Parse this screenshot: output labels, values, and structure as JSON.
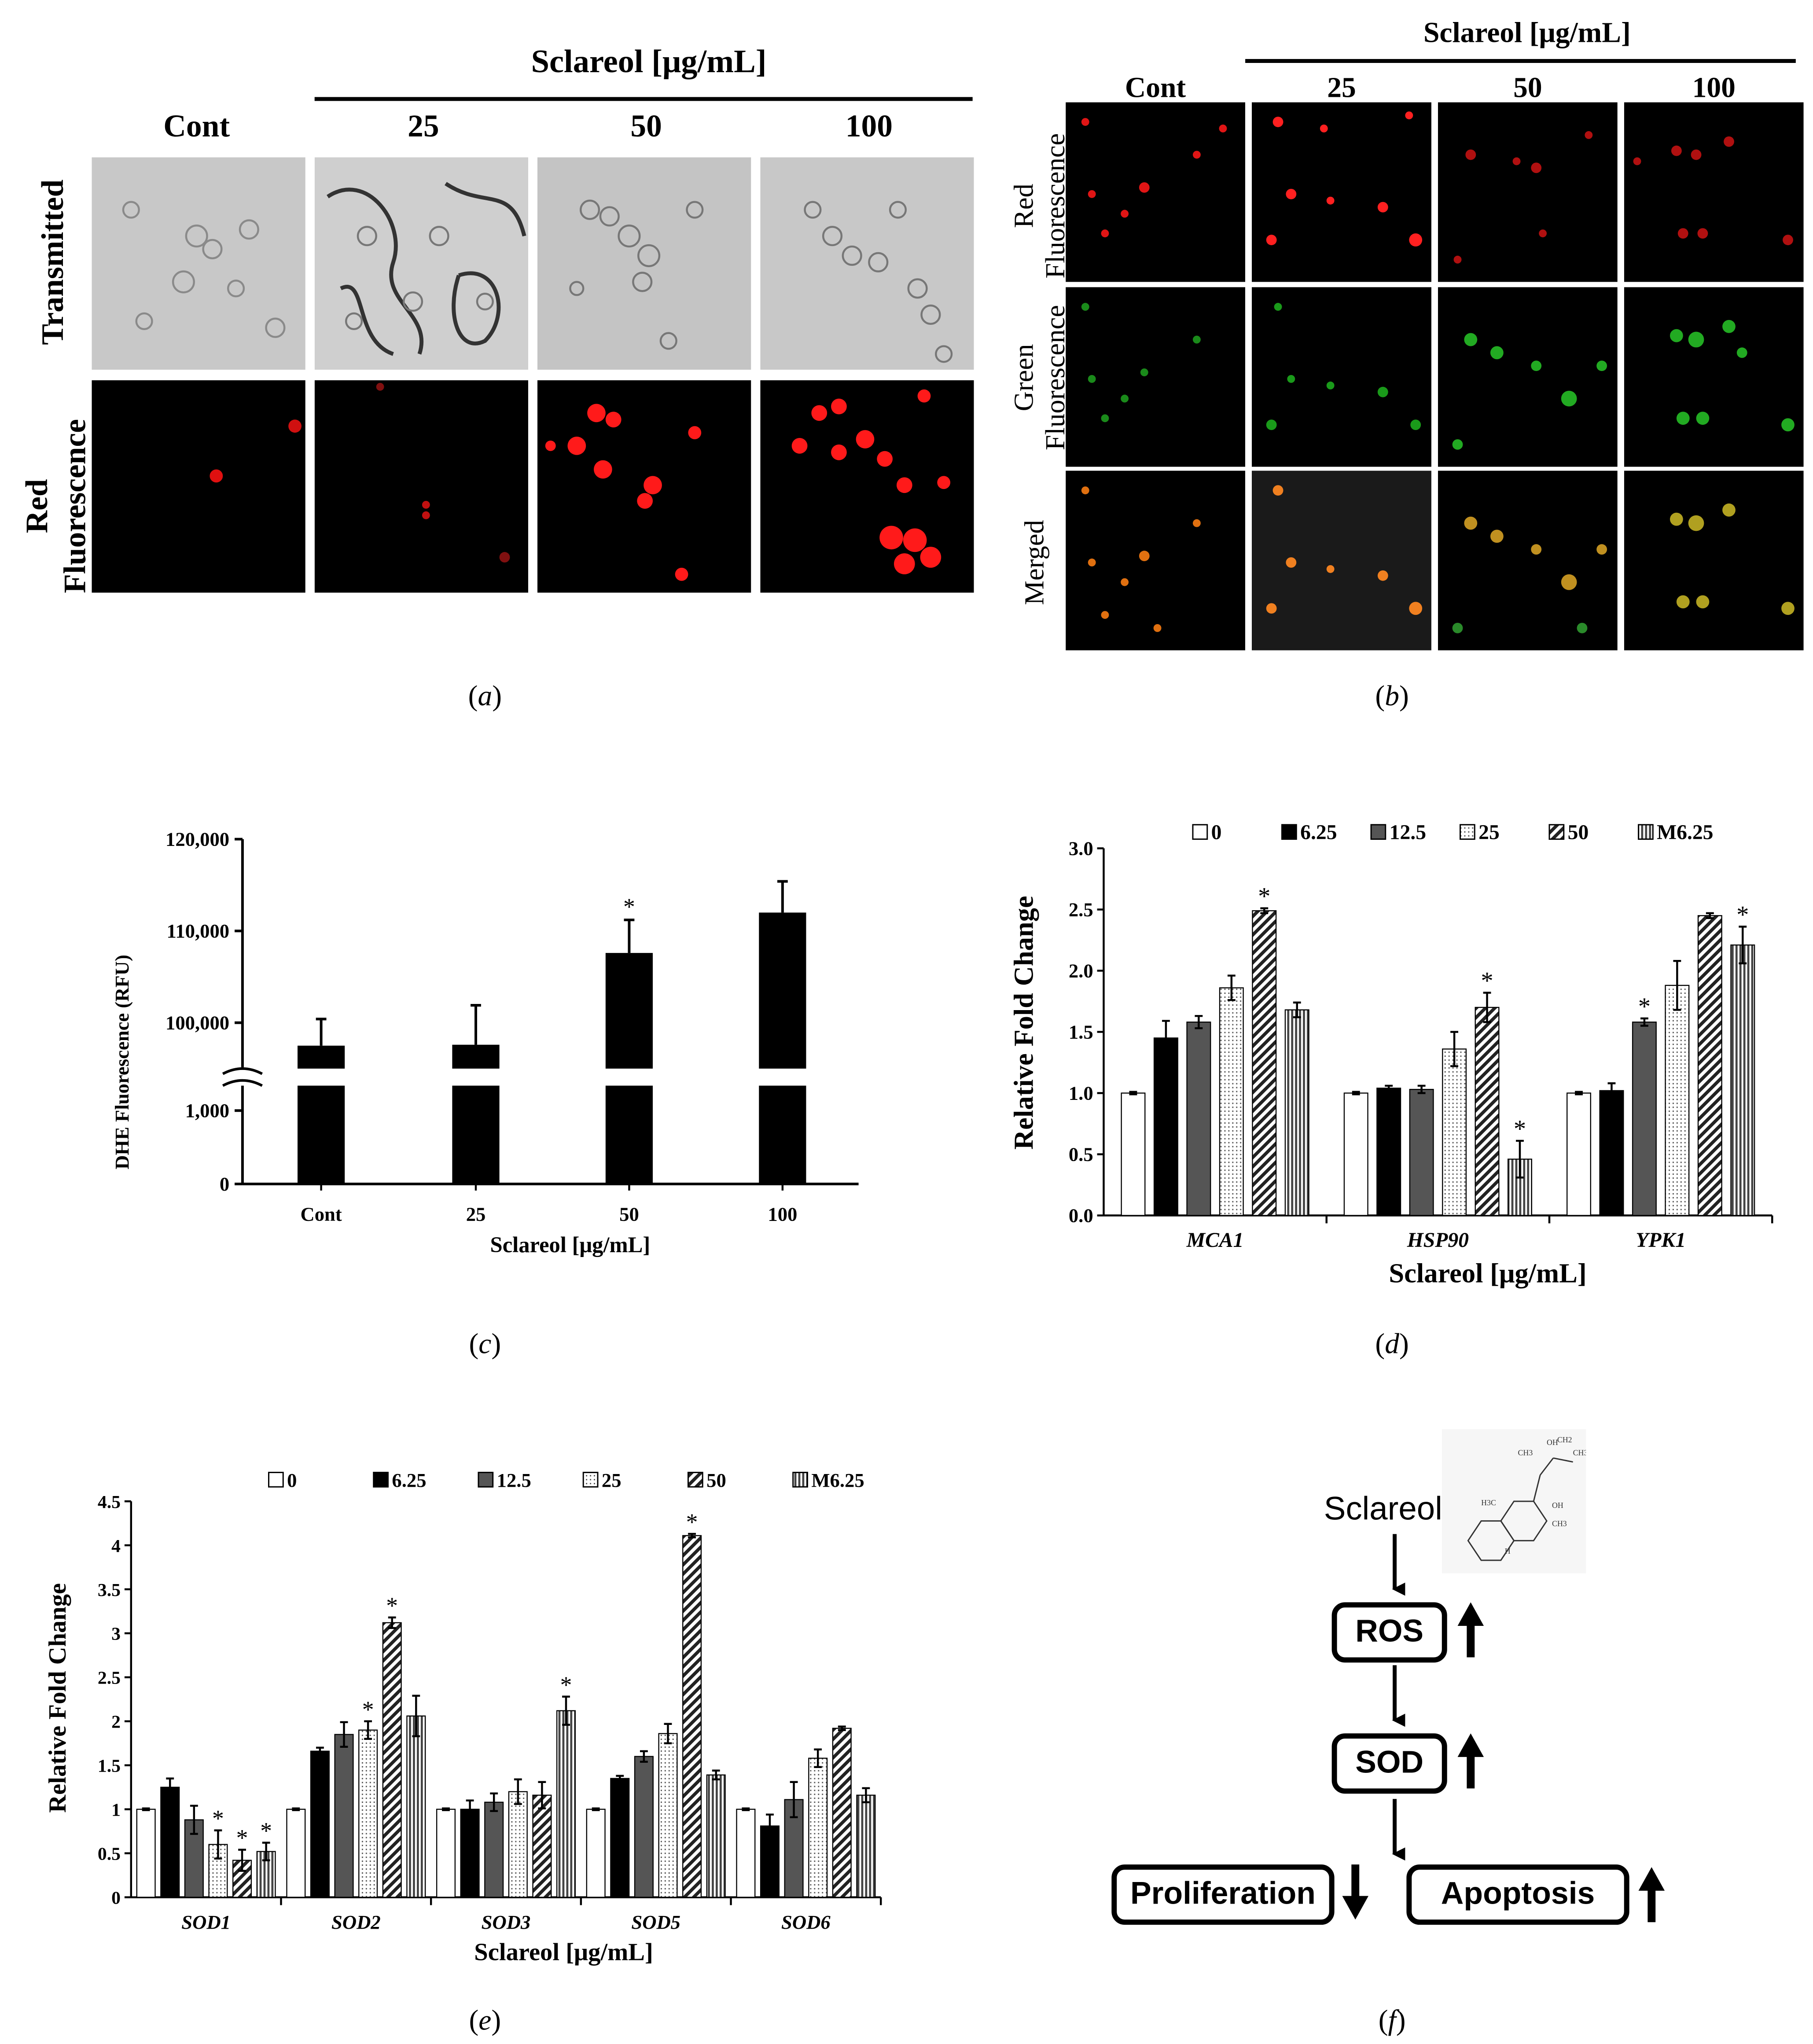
{
  "panel_a": {
    "header": "Sclareol [μg/mL]",
    "columns": [
      "Cont",
      "25",
      "50",
      "100"
    ],
    "rows": [
      "Transmitted",
      "Red Fluorescence"
    ],
    "caption": "a"
  },
  "panel_b": {
    "header": "Sclareol [μg/mL]",
    "columns": [
      "Cont",
      "25",
      "50",
      "100"
    ],
    "rows": [
      "Red Fluorescence",
      "Green Fluorescence",
      "Merged"
    ],
    "caption": "b"
  },
  "panel_c": {
    "caption": "c",
    "chart_data": {
      "type": "bar",
      "categories": [
        "Cont",
        "25",
        "50",
        "100"
      ],
      "values": [
        97500,
        97600,
        107600,
        112000
      ],
      "errors": [
        2900,
        4300,
        3600,
        3400
      ],
      "significant": [
        false,
        false,
        true,
        false
      ],
      "xlabel": "Sclareol [μg/mL]",
      "ylabel": "DHE Fluorescence (RFU)",
      "yticks_upper": [
        "100,000",
        "110,000",
        "120,000"
      ],
      "yticks_lower": [
        "0",
        "1,000"
      ],
      "axis_break": true,
      "bar_color": "#000000"
    }
  },
  "panel_d": {
    "caption": "d",
    "chart_data": {
      "type": "bar",
      "categories": [
        "MCA1",
        "HSP90",
        "YPK1"
      ],
      "xlabel": "Sclareol [μg/mL]",
      "ylabel": "Relative Fold Change",
      "ylim": [
        0,
        3.0
      ],
      "yticks": [
        "0.0",
        "0.5",
        "1.0",
        "1.5",
        "2.0",
        "2.5",
        "3.0"
      ],
      "legend_position": "top",
      "series": [
        {
          "name": "0",
          "values": [
            1.0,
            1.0,
            1.0
          ],
          "errors": [
            0.01,
            0.01,
            0.01
          ],
          "sig": [
            false,
            false,
            false
          ]
        },
        {
          "name": "6.25",
          "values": [
            1.45,
            1.04,
            1.02
          ],
          "errors": [
            0.14,
            0.02,
            0.06
          ],
          "sig": [
            false,
            false,
            false
          ]
        },
        {
          "name": "12.5",
          "values": [
            1.58,
            1.03,
            1.58
          ],
          "errors": [
            0.05,
            0.03,
            0.03
          ],
          "sig": [
            false,
            false,
            true
          ]
        },
        {
          "name": "25",
          "values": [
            1.86,
            1.36,
            1.88
          ],
          "errors": [
            0.1,
            0.14,
            0.2
          ],
          "sig": [
            false,
            false,
            false
          ]
        },
        {
          "name": "50",
          "values": [
            2.49,
            1.7,
            2.45
          ],
          "errors": [
            0.02,
            0.12,
            0.02
          ],
          "sig": [
            true,
            true,
            false
          ]
        },
        {
          "name": "M6.25",
          "values": [
            1.68,
            0.46,
            2.21
          ],
          "errors": [
            0.06,
            0.15,
            0.15
          ],
          "sig": [
            false,
            true,
            true
          ]
        }
      ]
    }
  },
  "panel_e": {
    "caption": "e",
    "chart_data": {
      "type": "bar",
      "categories": [
        "SOD1",
        "SOD2",
        "SOD3",
        "SOD5",
        "SOD6"
      ],
      "xlabel": "Sclareol [μg/mL]",
      "ylabel": "Relative Fold Change",
      "ylim": [
        0,
        4.5
      ],
      "yticks": [
        "0",
        "0.5",
        "1",
        "1.5",
        "2",
        "2.5",
        "3",
        "3.5",
        "4",
        "4.5"
      ],
      "legend_position": "top",
      "series": [
        {
          "name": "0",
          "values": [
            1.0,
            1.0,
            1.0,
            1.0,
            1.0
          ],
          "errors": [
            0.01,
            0.01,
            0.01,
            0.01,
            0.01
          ],
          "sig": [
            false,
            false,
            false,
            false,
            false
          ]
        },
        {
          "name": "6.25",
          "values": [
            1.25,
            1.66,
            1.0,
            1.35,
            0.81
          ],
          "errors": [
            0.1,
            0.04,
            0.1,
            0.03,
            0.13
          ],
          "sig": [
            false,
            false,
            false,
            false,
            false
          ]
        },
        {
          "name": "12.5",
          "values": [
            0.88,
            1.85,
            1.08,
            1.6,
            1.11
          ],
          "errors": [
            0.16,
            0.14,
            0.1,
            0.06,
            0.2
          ],
          "sig": [
            false,
            false,
            false,
            false,
            false
          ]
        },
        {
          "name": "25",
          "values": [
            0.6,
            1.9,
            1.2,
            1.86,
            1.58
          ],
          "errors": [
            0.16,
            0.1,
            0.14,
            0.11,
            0.1
          ],
          "sig": [
            true,
            true,
            false,
            false,
            false
          ]
        },
        {
          "name": "50",
          "values": [
            0.42,
            3.12,
            1.16,
            4.11,
            1.92
          ],
          "errors": [
            0.12,
            0.06,
            0.15,
            0.02,
            0.02
          ],
          "sig": [
            true,
            true,
            false,
            true,
            false
          ]
        },
        {
          "name": "M6.25",
          "values": [
            0.52,
            2.06,
            2.12,
            1.39,
            1.16
          ],
          "errors": [
            0.1,
            0.23,
            0.16,
            0.05,
            0.08
          ],
          "sig": [
            true,
            false,
            true,
            false,
            false
          ]
        }
      ]
    }
  },
  "panel_f": {
    "caption": "f",
    "sclareol": "Sclareol",
    "ros": "ROS",
    "sod": "SOD",
    "proliferation": "Proliferation",
    "apoptosis": "Apoptosis",
    "structure_labels": [
      "OH",
      "CH3",
      "CH3",
      "CH2",
      "H3C",
      "OH",
      "CH3",
      "H"
    ]
  }
}
